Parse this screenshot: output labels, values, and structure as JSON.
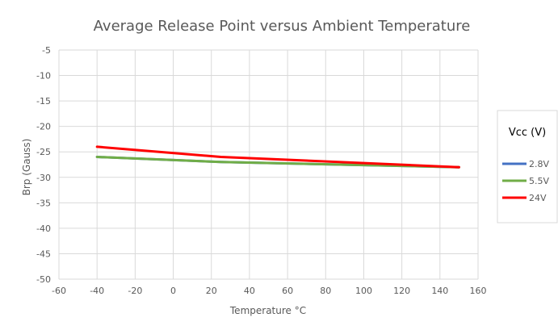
{
  "chart_data": {
    "type": "line",
    "title": "Average Release Point versus Ambient Temperature",
    "xlabel": "Temperature °C",
    "ylabel": "Brp (Gauss)",
    "xlim": [
      -60,
      160
    ],
    "ylim": [
      -50,
      -5
    ],
    "x_ticks": [
      -60,
      -40,
      -20,
      0,
      20,
      40,
      60,
      80,
      100,
      120,
      140,
      160
    ],
    "y_ticks": [
      -5,
      -10,
      -15,
      -20,
      -25,
      -30,
      -35,
      -40,
      -45,
      -50
    ],
    "grid": true,
    "legend": {
      "title": "Vcc (V)",
      "position": "right"
    },
    "series": [
      {
        "name": "2.8V",
        "color": "#4472C4",
        "x": [
          -40,
          25,
          150
        ],
        "y": [
          -26,
          -27,
          -28
        ]
      },
      {
        "name": "5.5V",
        "color": "#70AD47",
        "x": [
          -40,
          25,
          150
        ],
        "y": [
          -26,
          -27,
          -28
        ]
      },
      {
        "name": "24V",
        "color": "#FF0000",
        "x": [
          -40,
          25,
          150
        ],
        "y": [
          -24,
          -26,
          -28
        ]
      }
    ]
  }
}
